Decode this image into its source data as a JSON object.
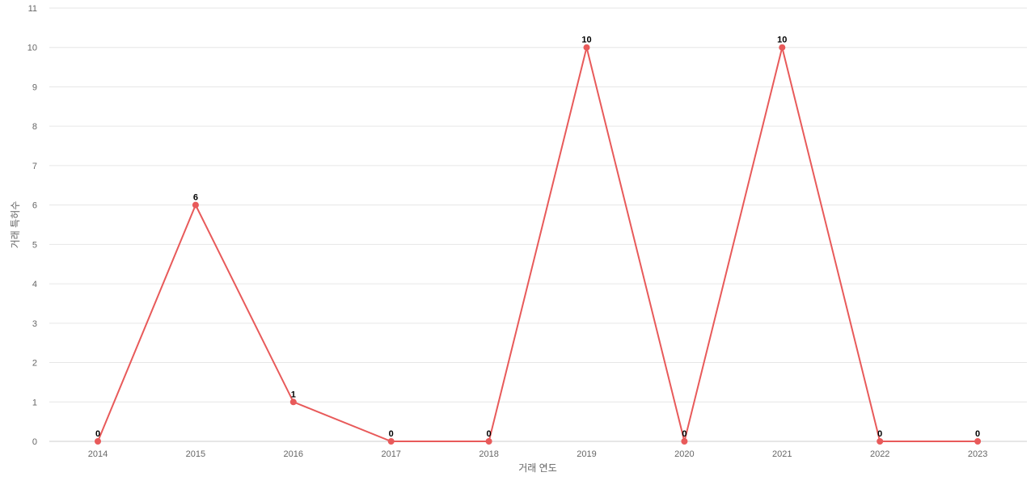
{
  "chart_data": {
    "type": "line",
    "title": "",
    "xlabel": "거래 연도",
    "ylabel": "거래 특허수",
    "categories": [
      "2014",
      "2015",
      "2016",
      "2017",
      "2018",
      "2019",
      "2020",
      "2021",
      "2022",
      "2023"
    ],
    "series": [
      {
        "values": [
          0,
          6,
          1,
          0,
          0,
          10,
          0,
          10,
          0,
          0
        ]
      }
    ],
    "ylim": [
      0,
      11
    ],
    "yticks": [
      0,
      1,
      2,
      3,
      4,
      5,
      6,
      7,
      8,
      9,
      10,
      11
    ],
    "grid": true,
    "data_labels": true,
    "line_color": "#e85a5a",
    "marker_color": "#e85a5a"
  }
}
